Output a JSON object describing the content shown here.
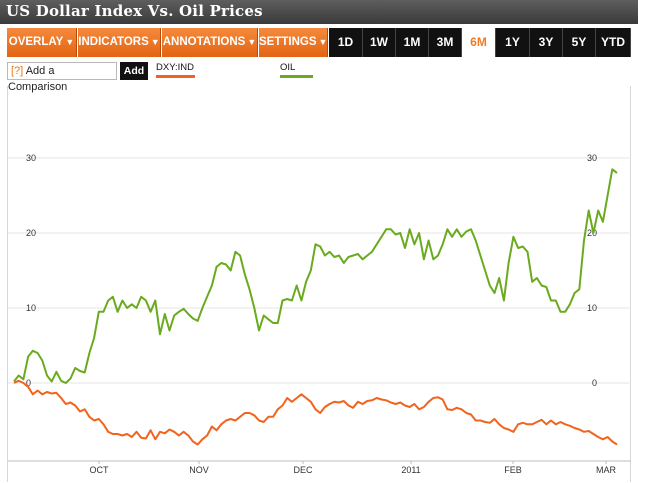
{
  "title": "US Dollar Index Vs. Oil Prices",
  "toolbar": {
    "menus": [
      {
        "label": "OVERLAY"
      },
      {
        "label": "INDICATORS"
      },
      {
        "label": "ANNOTATIONS"
      },
      {
        "label": "SETTINGS"
      }
    ],
    "ranges": [
      "1D",
      "1W",
      "1M",
      "3M",
      "6M",
      "1Y",
      "3Y",
      "5Y",
      "YTD"
    ],
    "active_range": "6M"
  },
  "comparison": {
    "help": "[?]",
    "label": "Add a Comparison",
    "add_button": "Add"
  },
  "legend": [
    {
      "label": "DXY:IND",
      "color": "#f0641e"
    },
    {
      "label": "OIL",
      "color": "#6aaa1f"
    }
  ],
  "chart_data": {
    "type": "line",
    "x_labels": [
      "OCT",
      "NOV",
      "DEC",
      "2011",
      "FEB",
      "MAR"
    ],
    "y_ticks": [
      0,
      10,
      20,
      30
    ],
    "ylim": [
      -10,
      40
    ],
    "grid": "horizontal",
    "series": [
      {
        "name": "OIL",
        "color": "#6aaa1f",
        "points": [
          [
            0,
            0.2
          ],
          [
            1,
            1
          ],
          [
            2,
            0.5
          ],
          [
            3,
            3.5
          ],
          [
            4,
            4.3
          ],
          [
            5,
            4
          ],
          [
            6,
            3
          ],
          [
            7,
            1
          ],
          [
            8,
            0.2
          ],
          [
            9,
            1.5
          ],
          [
            10,
            0.3
          ],
          [
            11,
            0
          ],
          [
            12,
            0.6
          ],
          [
            13,
            2
          ],
          [
            14,
            1.6
          ],
          [
            15,
            1.4
          ],
          [
            16,
            4
          ],
          [
            17,
            6
          ],
          [
            18,
            9.5
          ],
          [
            19,
            9.5
          ],
          [
            20,
            11
          ],
          [
            21,
            11.5
          ],
          [
            22,
            9.5
          ],
          [
            23,
            11
          ],
          [
            24,
            10
          ],
          [
            25,
            10.5
          ],
          [
            26,
            10
          ],
          [
            27,
            11.5
          ],
          [
            28,
            11
          ],
          [
            29,
            9.5
          ],
          [
            30,
            11
          ],
          [
            31,
            6.5
          ],
          [
            32,
            9.2
          ],
          [
            33,
            7
          ],
          [
            34,
            9
          ],
          [
            35,
            9.5
          ],
          [
            36,
            9.9
          ],
          [
            37,
            9.2
          ],
          [
            38,
            8.6
          ],
          [
            39,
            8.3
          ],
          [
            40,
            10
          ],
          [
            41,
            11.5
          ],
          [
            42,
            13
          ],
          [
            43,
            15.5
          ],
          [
            44,
            16
          ],
          [
            45,
            15.8
          ],
          [
            46,
            15
          ],
          [
            47,
            17.5
          ],
          [
            48,
            17
          ],
          [
            49,
            14.5
          ],
          [
            50,
            12.5
          ],
          [
            51,
            10
          ],
          [
            52,
            7
          ],
          [
            53,
            9
          ],
          [
            54,
            8.5
          ],
          [
            55,
            8
          ],
          [
            56,
            8
          ],
          [
            57,
            11
          ],
          [
            58,
            11.2
          ],
          [
            59,
            11
          ],
          [
            60,
            13
          ],
          [
            61,
            11
          ],
          [
            62,
            13.5
          ],
          [
            63,
            15
          ],
          [
            64,
            18.5
          ],
          [
            65,
            18.2
          ],
          [
            66,
            17
          ],
          [
            67,
            17.5
          ],
          [
            68,
            16.8
          ],
          [
            69,
            17
          ],
          [
            70,
            16
          ],
          [
            71,
            16.8
          ],
          [
            72,
            17
          ],
          [
            73,
            17.2
          ],
          [
            74,
            16.5
          ],
          [
            75,
            17
          ],
          [
            76,
            17.5
          ],
          [
            77,
            18.5
          ],
          [
            78,
            19.5
          ],
          [
            79,
            20.5
          ],
          [
            80,
            20.5
          ],
          [
            81,
            19.8
          ],
          [
            82,
            20
          ],
          [
            83,
            18
          ],
          [
            84,
            20.5
          ],
          [
            85,
            18.5
          ],
          [
            86,
            20
          ],
          [
            87,
            16.5
          ],
          [
            88,
            19
          ],
          [
            89,
            16.5
          ],
          [
            90,
            17
          ],
          [
            91,
            18.5
          ],
          [
            92,
            20.5
          ],
          [
            93,
            19.5
          ],
          [
            94,
            20.5
          ],
          [
            95,
            19.5
          ],
          [
            96,
            20.2
          ],
          [
            97,
            20.5
          ],
          [
            98,
            19
          ],
          [
            99,
            17
          ],
          [
            100,
            15
          ],
          [
            101,
            13
          ],
          [
            102,
            12
          ],
          [
            103,
            14
          ],
          [
            104,
            11
          ],
          [
            105,
            16
          ],
          [
            106,
            19.5
          ],
          [
            107,
            18
          ],
          [
            108,
            18.2
          ],
          [
            109,
            17.5
          ],
          [
            110,
            13.5
          ],
          [
            111,
            14
          ],
          [
            112,
            13
          ],
          [
            113,
            12.8
          ],
          [
            114,
            11
          ],
          [
            115,
            11
          ],
          [
            116,
            9.5
          ],
          [
            117,
            9.5
          ],
          [
            118,
            10.5
          ],
          [
            119,
            12
          ],
          [
            120,
            12.5
          ],
          [
            121,
            19
          ],
          [
            122,
            23
          ],
          [
            123,
            20
          ],
          [
            124,
            23
          ],
          [
            125,
            21.5
          ],
          [
            126,
            25
          ],
          [
            127,
            28.5
          ],
          [
            128,
            28
          ]
        ]
      },
      {
        "name": "DXY:IND",
        "color": "#f0641e",
        "points": [
          [
            0,
            0
          ],
          [
            1,
            0.3
          ],
          [
            2,
            0
          ],
          [
            3,
            -0.5
          ],
          [
            4,
            -1.5
          ],
          [
            5,
            -1
          ],
          [
            6,
            -1.5
          ],
          [
            7,
            -1.2
          ],
          [
            8,
            -1.4
          ],
          [
            9,
            -1.3
          ],
          [
            10,
            -2
          ],
          [
            11,
            -2.8
          ],
          [
            12,
            -2.6
          ],
          [
            13,
            -3
          ],
          [
            14,
            -3.8
          ],
          [
            15,
            -3.5
          ],
          [
            16,
            -4.5
          ],
          [
            17,
            -5
          ],
          [
            18,
            -4.8
          ],
          [
            19,
            -5.5
          ],
          [
            20,
            -6.5
          ],
          [
            21,
            -6.8
          ],
          [
            22,
            -6.8
          ],
          [
            23,
            -7
          ],
          [
            24,
            -6.8
          ],
          [
            25,
            -7.2
          ],
          [
            26,
            -6.5
          ],
          [
            27,
            -7.3
          ],
          [
            28,
            -7.4
          ],
          [
            29,
            -6.3
          ],
          [
            30,
            -7.5
          ],
          [
            31,
            -6.5
          ],
          [
            32,
            -6.7
          ],
          [
            33,
            -6.2
          ],
          [
            34,
            -6.5
          ],
          [
            35,
            -7
          ],
          [
            36,
            -6.5
          ],
          [
            37,
            -7
          ],
          [
            38,
            -7.8
          ],
          [
            39,
            -8.2
          ],
          [
            40,
            -7.5
          ],
          [
            41,
            -7
          ],
          [
            42,
            -5.8
          ],
          [
            43,
            -6.3
          ],
          [
            44,
            -5.5
          ],
          [
            45,
            -5
          ],
          [
            46,
            -4.8
          ],
          [
            47,
            -5
          ],
          [
            48,
            -4.5
          ],
          [
            49,
            -4
          ],
          [
            50,
            -4
          ],
          [
            51,
            -4.3
          ],
          [
            52,
            -5
          ],
          [
            53,
            -5.2
          ],
          [
            54,
            -4.5
          ],
          [
            55,
            -4.5
          ],
          [
            56,
            -3.5
          ],
          [
            57,
            -3
          ],
          [
            58,
            -2
          ],
          [
            59,
            -2.5
          ],
          [
            60,
            -2
          ],
          [
            61,
            -1.5
          ],
          [
            62,
            -2
          ],
          [
            63,
            -2.5
          ],
          [
            64,
            -3.5
          ],
          [
            65,
            -4
          ],
          [
            66,
            -3.2
          ],
          [
            67,
            -2.8
          ],
          [
            68,
            -2.5
          ],
          [
            69,
            -2.6
          ],
          [
            70,
            -2.4
          ],
          [
            71,
            -3
          ],
          [
            72,
            -3.3
          ],
          [
            73,
            -2.5
          ],
          [
            74,
            -2.8
          ],
          [
            75,
            -2.4
          ],
          [
            76,
            -2.3
          ],
          [
            77,
            -2
          ],
          [
            78,
            -2.2
          ],
          [
            79,
            -2.3
          ],
          [
            80,
            -2.6
          ],
          [
            81,
            -2.8
          ],
          [
            82,
            -2.6
          ],
          [
            83,
            -3
          ],
          [
            84,
            -3.2
          ],
          [
            85,
            -2.8
          ],
          [
            86,
            -3.5
          ],
          [
            87,
            -3.2
          ],
          [
            88,
            -2.5
          ],
          [
            89,
            -2
          ],
          [
            90,
            -1.9
          ],
          [
            91,
            -2.2
          ],
          [
            92,
            -3.5
          ],
          [
            93,
            -3.6
          ],
          [
            94,
            -3.3
          ],
          [
            95,
            -3.5
          ],
          [
            96,
            -4
          ],
          [
            97,
            -4.2
          ],
          [
            98,
            -5
          ],
          [
            99,
            -5
          ],
          [
            100,
            -5.2
          ],
          [
            101,
            -5.3
          ],
          [
            102,
            -4.8
          ],
          [
            103,
            -5.5
          ],
          [
            104,
            -6
          ],
          [
            105,
            -6.2
          ],
          [
            106,
            -6.5
          ],
          [
            107,
            -5.5
          ],
          [
            108,
            -5.3
          ],
          [
            109,
            -5.5
          ],
          [
            110,
            -5.5
          ],
          [
            111,
            -5.2
          ],
          [
            112,
            -4.9
          ],
          [
            113,
            -5.5
          ],
          [
            114,
            -5
          ],
          [
            115,
            -5.5
          ],
          [
            116,
            -5.2
          ],
          [
            117,
            -5.5
          ],
          [
            118,
            -5.7
          ],
          [
            119,
            -6
          ],
          [
            120,
            -6.2
          ],
          [
            121,
            -6.5
          ],
          [
            122,
            -6.4
          ],
          [
            123,
            -6.8
          ],
          [
            124,
            -7.2
          ],
          [
            125,
            -7.5
          ],
          [
            126,
            -7.2
          ],
          [
            127,
            -7.8
          ],
          [
            128,
            -8.2
          ]
        ]
      }
    ]
  }
}
